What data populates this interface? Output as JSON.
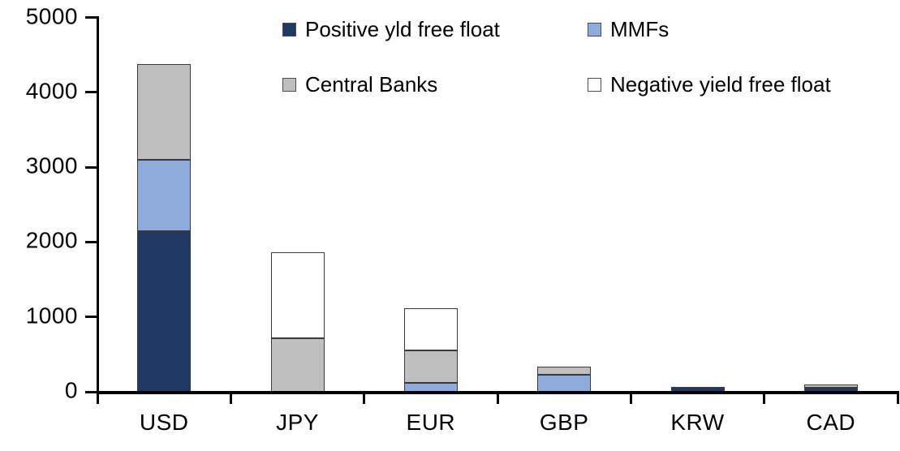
{
  "chart_data": {
    "type": "bar",
    "stacked": true,
    "title": "",
    "xlabel": "",
    "ylabel": "",
    "categories": [
      "USD",
      "JPY",
      "EUR",
      "GBP",
      "KRW",
      "CAD"
    ],
    "series": [
      {
        "name": "Positive yld free float",
        "color": "#1F3864",
        "values": [
          2150,
          0,
          0,
          0,
          60,
          55
        ]
      },
      {
        "name": "MMFs",
        "color": "#8FAADC",
        "values": [
          950,
          0,
          120,
          230,
          0,
          0
        ]
      },
      {
        "name": "Central Banks",
        "color": "#BFBFBF",
        "values": [
          1280,
          720,
          430,
          110,
          0,
          45
        ]
      },
      {
        "name": "Negative yield free float",
        "color": "#FFFFFF",
        "values": [
          0,
          1140,
          570,
          0,
          0,
          0
        ]
      }
    ],
    "totals": [
      4380,
      1860,
      1120,
      340,
      60,
      100
    ],
    "ylim": [
      0,
      5000
    ],
    "yticks": [
      "0",
      "1000",
      "2000",
      "3000",
      "4000",
      "5000"
    ],
    "gridlines": false,
    "legend_position": "top",
    "legend_rows": [
      [
        "Positive yld free float",
        "MMFs"
      ],
      [
        "Central Banks",
        "Negative yield free float"
      ]
    ],
    "axis_color": "#000000",
    "segment_border_color": "#3a3a3a",
    "background_color": "#FFFFFF"
  }
}
